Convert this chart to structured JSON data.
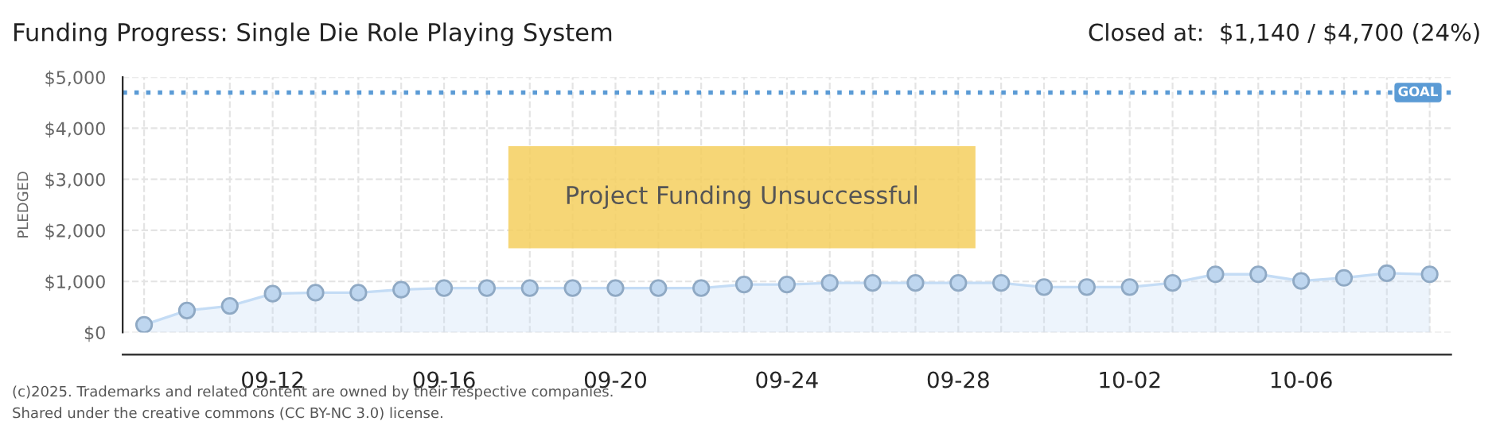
{
  "chart_data": {
    "type": "area",
    "title": "Funding Progress: Single Die Role Playing System",
    "subtitle": "Closed at:  $1,140 / $4,700 (24%)",
    "ylabel": "PLEDGED",
    "categories": [
      null,
      null,
      null,
      "09-12",
      null,
      null,
      null,
      "09-16",
      null,
      null,
      null,
      "09-20",
      null,
      null,
      null,
      "09-24",
      null,
      null,
      null,
      "09-28",
      null,
      null,
      null,
      "10-02",
      null,
      null,
      null,
      "10-06",
      null,
      null,
      null
    ],
    "series": [
      {
        "color": "#c4dcf5",
        "values": [
          150,
          430,
          520,
          760,
          780,
          780,
          840,
          870,
          870,
          870,
          870,
          870,
          870,
          870,
          940,
          940,
          970,
          970,
          970,
          970,
          970,
          890,
          890,
          890,
          970,
          1140,
          1140,
          1010,
          1070,
          1160,
          1140
        ]
      }
    ],
    "ylim": [
      0,
      5000
    ],
    "yticks": [
      {
        "value": 0,
        "label": "$0"
      },
      {
        "value": 1000,
        "label": "$1,000"
      },
      {
        "value": 2000,
        "label": "$2,000"
      },
      {
        "value": 3000,
        "label": "$3,000"
      },
      {
        "value": 4000,
        "label": "$4,000"
      },
      {
        "value": 5000,
        "label": "$5,000"
      }
    ],
    "ref_lines": [
      {
        "axis": "y",
        "value": 4700,
        "label": "GOAL",
        "color": "#5b9bd5",
        "line_style": "dotted"
      }
    ],
    "grid": true,
    "marker": "circle",
    "legend": false,
    "annotations": [
      "Project Funding Unsuccessful",
      "(c)2025. Trademarks and related content are owned by their respective companies.",
      "Shared under the creative commons (CC BY-NC 3.0) license."
    ]
  }
}
